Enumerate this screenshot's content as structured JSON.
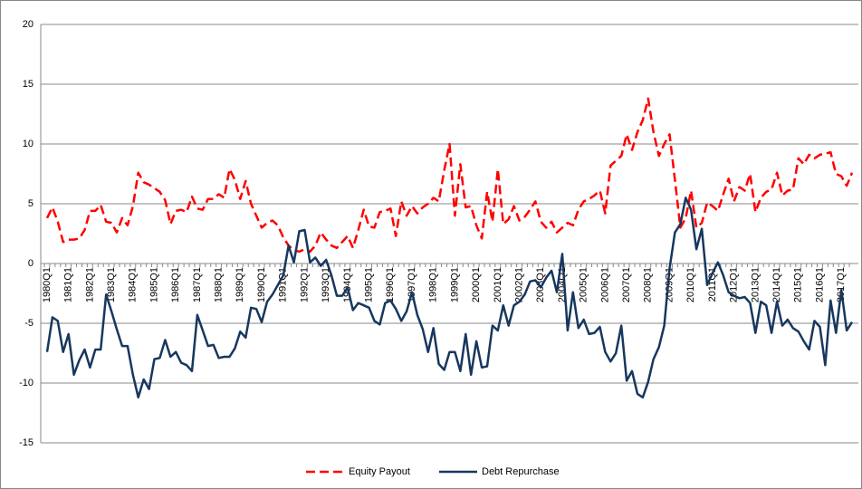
{
  "chart_data": {
    "type": "line",
    "categories": [
      "1980Q1",
      null,
      null,
      null,
      "1981Q1",
      null,
      null,
      null,
      "1982Q1",
      null,
      null,
      null,
      "1983Q1",
      null,
      null,
      null,
      "1984Q1",
      null,
      null,
      null,
      "1985Q1",
      null,
      null,
      null,
      "1986Q1",
      null,
      null,
      null,
      "1987Q1",
      null,
      null,
      null,
      "1988Q1",
      null,
      null,
      null,
      "1989Q1",
      null,
      null,
      null,
      "1990Q1",
      null,
      null,
      null,
      "1991Q1",
      null,
      null,
      null,
      "1992Q1",
      null,
      null,
      null,
      "1993Q1",
      null,
      null,
      null,
      "1994Q1",
      null,
      null,
      null,
      "1995Q1",
      null,
      null,
      null,
      "1996Q1",
      null,
      null,
      null,
      "1997Q1",
      null,
      null,
      null,
      "1998Q1",
      null,
      null,
      null,
      "1999Q1",
      null,
      null,
      null,
      "2000Q1",
      null,
      null,
      null,
      "2001Q1",
      null,
      null,
      null,
      "2002Q1",
      null,
      null,
      null,
      "2003Q1",
      null,
      null,
      null,
      "2004Q1",
      null,
      null,
      null,
      "2005Q1",
      null,
      null,
      null,
      "2006Q1",
      null,
      null,
      null,
      "2007Q1",
      null,
      null,
      null,
      "2008Q1",
      null,
      null,
      null,
      "2009Q1",
      null,
      null,
      null,
      "2010Q1",
      null,
      null,
      null,
      "2011Q1",
      null,
      null,
      null,
      "2012Q1",
      null,
      null,
      null,
      "2013Q1",
      null,
      null,
      null,
      "2014Q1",
      null,
      null,
      null,
      "2015Q1",
      null,
      null,
      null,
      "2016Q1",
      null,
      null,
      null,
      "2017Q1",
      null,
      null
    ],
    "series": [
      {
        "name": "Equity Payout",
        "color": "#ff0000",
        "dashed": true,
        "values": [
          3.8,
          4.7,
          3.5,
          1.8,
          2.0,
          2.0,
          2.1,
          2.8,
          4.4,
          4.4,
          4.9,
          3.5,
          3.4,
          2.6,
          3.8,
          3.2,
          4.8,
          7.6,
          6.8,
          6.6,
          6.3,
          6.0,
          5.3,
          3.3,
          4.4,
          4.5,
          4.3,
          5.6,
          4.6,
          4.5,
          5.4,
          5.4,
          5.8,
          5.5,
          7.9,
          7.0,
          5.4,
          6.9,
          5.0,
          4.0,
          3.0,
          3.4,
          3.6,
          3.2,
          2.2,
          1.5,
          1.1,
          1.0,
          1.2,
          1.0,
          1.5,
          2.6,
          2.0,
          1.5,
          1.3,
          1.8,
          2.3,
          1.3,
          2.8,
          4.5,
          3.1,
          3.0,
          4.3,
          4.4,
          4.6,
          2.3,
          5.2,
          4.0,
          4.8,
          4.2,
          4.7,
          5.0,
          5.5,
          5.2,
          7.8,
          10.0,
          4.0,
          8.3,
          4.7,
          4.8,
          3.2,
          2.1,
          6.0,
          3.5,
          7.9,
          3.3,
          3.7,
          4.8,
          3.6,
          3.9,
          4.5,
          5.2,
          3.5,
          3.0,
          3.5,
          2.6,
          3.0,
          3.4,
          3.2,
          4.5,
          5.2,
          5.4,
          5.7,
          6.1,
          4.2,
          8.2,
          8.6,
          9.0,
          10.8,
          9.5,
          11.0,
          12.0,
          13.8,
          11.0,
          9.0,
          10.0,
          10.8,
          7.0,
          3.0,
          3.8,
          6.1,
          3.0,
          3.4,
          5.1,
          4.8,
          4.4,
          5.8,
          7.1,
          5.2,
          6.4,
          6.1,
          7.5,
          4.3,
          5.5,
          6.0,
          6.2,
          7.6,
          5.7,
          6.1,
          6.2,
          8.8,
          8.3,
          9.1,
          8.8,
          9.1,
          9.2,
          9.3,
          7.5,
          7.3,
          6.5,
          7.6
        ]
      },
      {
        "name": "Debt Repurchase",
        "color": "#17375e",
        "dashed": false,
        "values": [
          -7.4,
          -4.5,
          -4.8,
          -7.4,
          -5.9,
          -9.3,
          -8.1,
          -7.2,
          -8.7,
          -7.2,
          -7.2,
          -2.6,
          -4.0,
          -5.5,
          -6.9,
          -6.9,
          -9.3,
          -11.2,
          -9.7,
          -10.5,
          -8.0,
          -7.9,
          -6.4,
          -7.8,
          -7.4,
          -8.3,
          -8.5,
          -9.0,
          -4.3,
          -5.6,
          -6.9,
          -6.8,
          -7.9,
          -7.8,
          -7.8,
          -7.1,
          -5.7,
          -6.2,
          -3.7,
          -3.8,
          -4.9,
          -3.2,
          -2.6,
          -1.8,
          -1.0,
          1.5,
          0.1,
          2.7,
          2.8,
          0.1,
          0.5,
          -0.2,
          0.3,
          -1.0,
          -2.7,
          -2.7,
          -2.0,
          -3.9,
          -3.3,
          -3.5,
          -3.7,
          -4.8,
          -5.1,
          -3.3,
          -3.1,
          -3.8,
          -4.8,
          -4.0,
          -2.4,
          -4.3,
          -5.5,
          -7.4,
          -5.4,
          -8.4,
          -8.9,
          -7.4,
          -7.4,
          -9.0,
          -5.9,
          -9.3,
          -6.5,
          -8.7,
          -8.6,
          -5.2,
          -5.6,
          -3.5,
          -5.2,
          -3.5,
          -3.2,
          -2.6,
          -1.5,
          -1.4,
          -2.0,
          -1.2,
          -0.6,
          -2.4,
          0.8,
          -5.6,
          -2.4,
          -5.4,
          -4.7,
          -5.9,
          -5.8,
          -5.3,
          -7.4,
          -8.2,
          -7.5,
          -5.2,
          -9.8,
          -9.0,
          -10.9,
          -11.2,
          -9.9,
          -8.0,
          -7.0,
          -5.2,
          -0.4,
          2.6,
          3.3,
          5.5,
          4.5,
          1.2,
          2.9,
          -1.8,
          -0.8,
          0.1,
          -1.0,
          -2.4,
          -2.7,
          -2.9,
          -2.8,
          -3.3,
          -5.8,
          -3.2,
          -3.5,
          -5.8,
          -3.2,
          -5.2,
          -4.7,
          -5.4,
          -5.7,
          -6.5,
          -7.2,
          -4.8,
          -5.3,
          -8.5,
          -3.1,
          -5.8,
          -2.2,
          -5.6,
          -4.9
        ]
      }
    ],
    "ylim": [
      -15,
      20
    ],
    "yticks": [
      -15,
      -10,
      -5,
      0,
      5,
      10,
      15,
      20
    ],
    "grid": true,
    "legend": "bottom"
  }
}
